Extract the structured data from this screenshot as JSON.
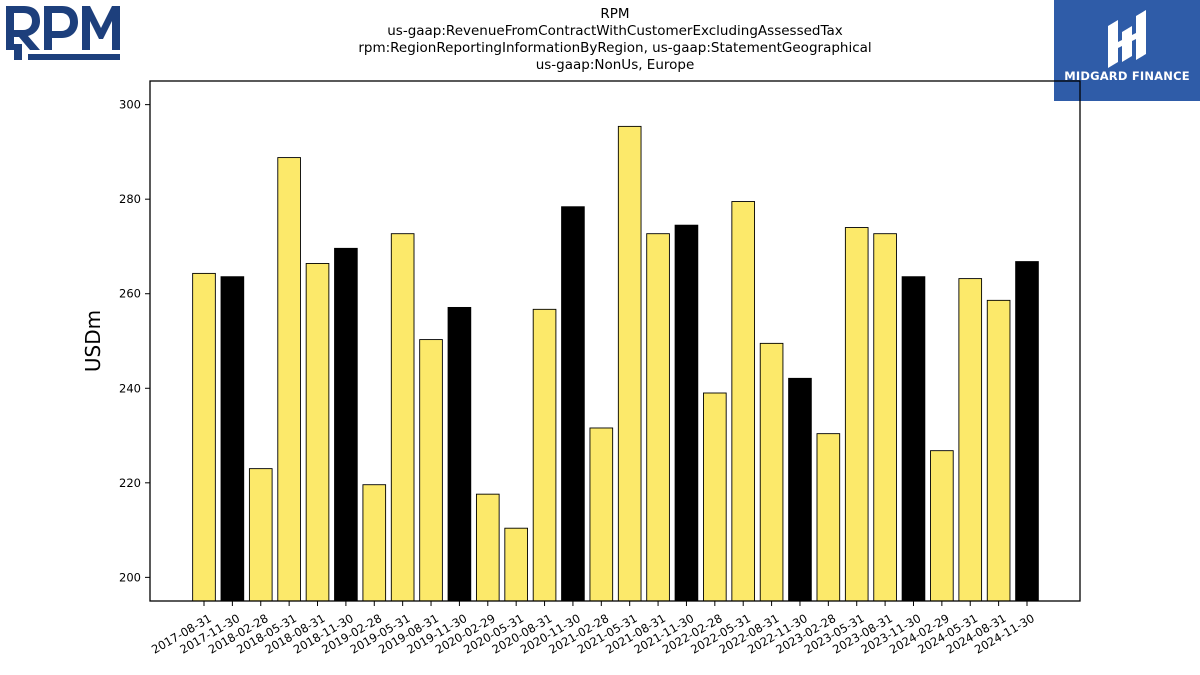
{
  "title_lines": [
    "RPM",
    "us-gaap:RevenueFromContractWithCustomerExcludingAssessedTax",
    "rpm:RegionReportingInformationByRegion, us-gaap:StatementGeographical",
    "us-gaap:NonUs, Europe"
  ],
  "logos": {
    "left": "RPM",
    "right": "MIDGARD FINANCE"
  },
  "colors": {
    "highlight": "#000000",
    "normal": "#fce96a",
    "edge": "#000000"
  },
  "chart_data": {
    "type": "bar",
    "title": "RPM",
    "xlabel": "",
    "ylabel": "USDm",
    "ylim": [
      195,
      305
    ],
    "yticks": [
      200,
      220,
      240,
      260,
      280,
      300
    ],
    "categories": [
      "2017-08-31",
      "2017-11-30",
      "2018-02-28",
      "2018-05-31",
      "2018-08-31",
      "2018-11-30",
      "2019-02-28",
      "2019-05-31",
      "2019-08-31",
      "2019-11-30",
      "2020-02-29",
      "2020-05-31",
      "2020-08-31",
      "2020-11-30",
      "2021-02-28",
      "2021-05-31",
      "2021-08-31",
      "2021-11-30",
      "2022-02-28",
      "2022-05-31",
      "2022-08-31",
      "2022-11-30",
      "2023-02-28",
      "2023-05-31",
      "2023-08-31",
      "2023-11-30",
      "2024-02-29",
      "2024-05-31",
      "2024-08-31",
      "2024-11-30"
    ],
    "values": [
      264.3,
      263.6,
      223.0,
      288.8,
      266.4,
      269.6,
      219.6,
      272.7,
      250.3,
      257.1,
      217.6,
      210.4,
      256.7,
      278.4,
      231.6,
      295.4,
      272.7,
      274.5,
      239.0,
      279.5,
      249.5,
      242.1,
      230.4,
      274.0,
      272.7,
      263.6,
      226.8,
      263.2,
      258.6,
      266.8
    ],
    "highlighted": [
      false,
      true,
      false,
      false,
      false,
      true,
      false,
      false,
      false,
      true,
      false,
      false,
      false,
      true,
      false,
      false,
      false,
      true,
      false,
      false,
      false,
      true,
      false,
      false,
      false,
      true,
      false,
      false,
      false,
      true
    ],
    "grid": false,
    "legend": "none"
  }
}
